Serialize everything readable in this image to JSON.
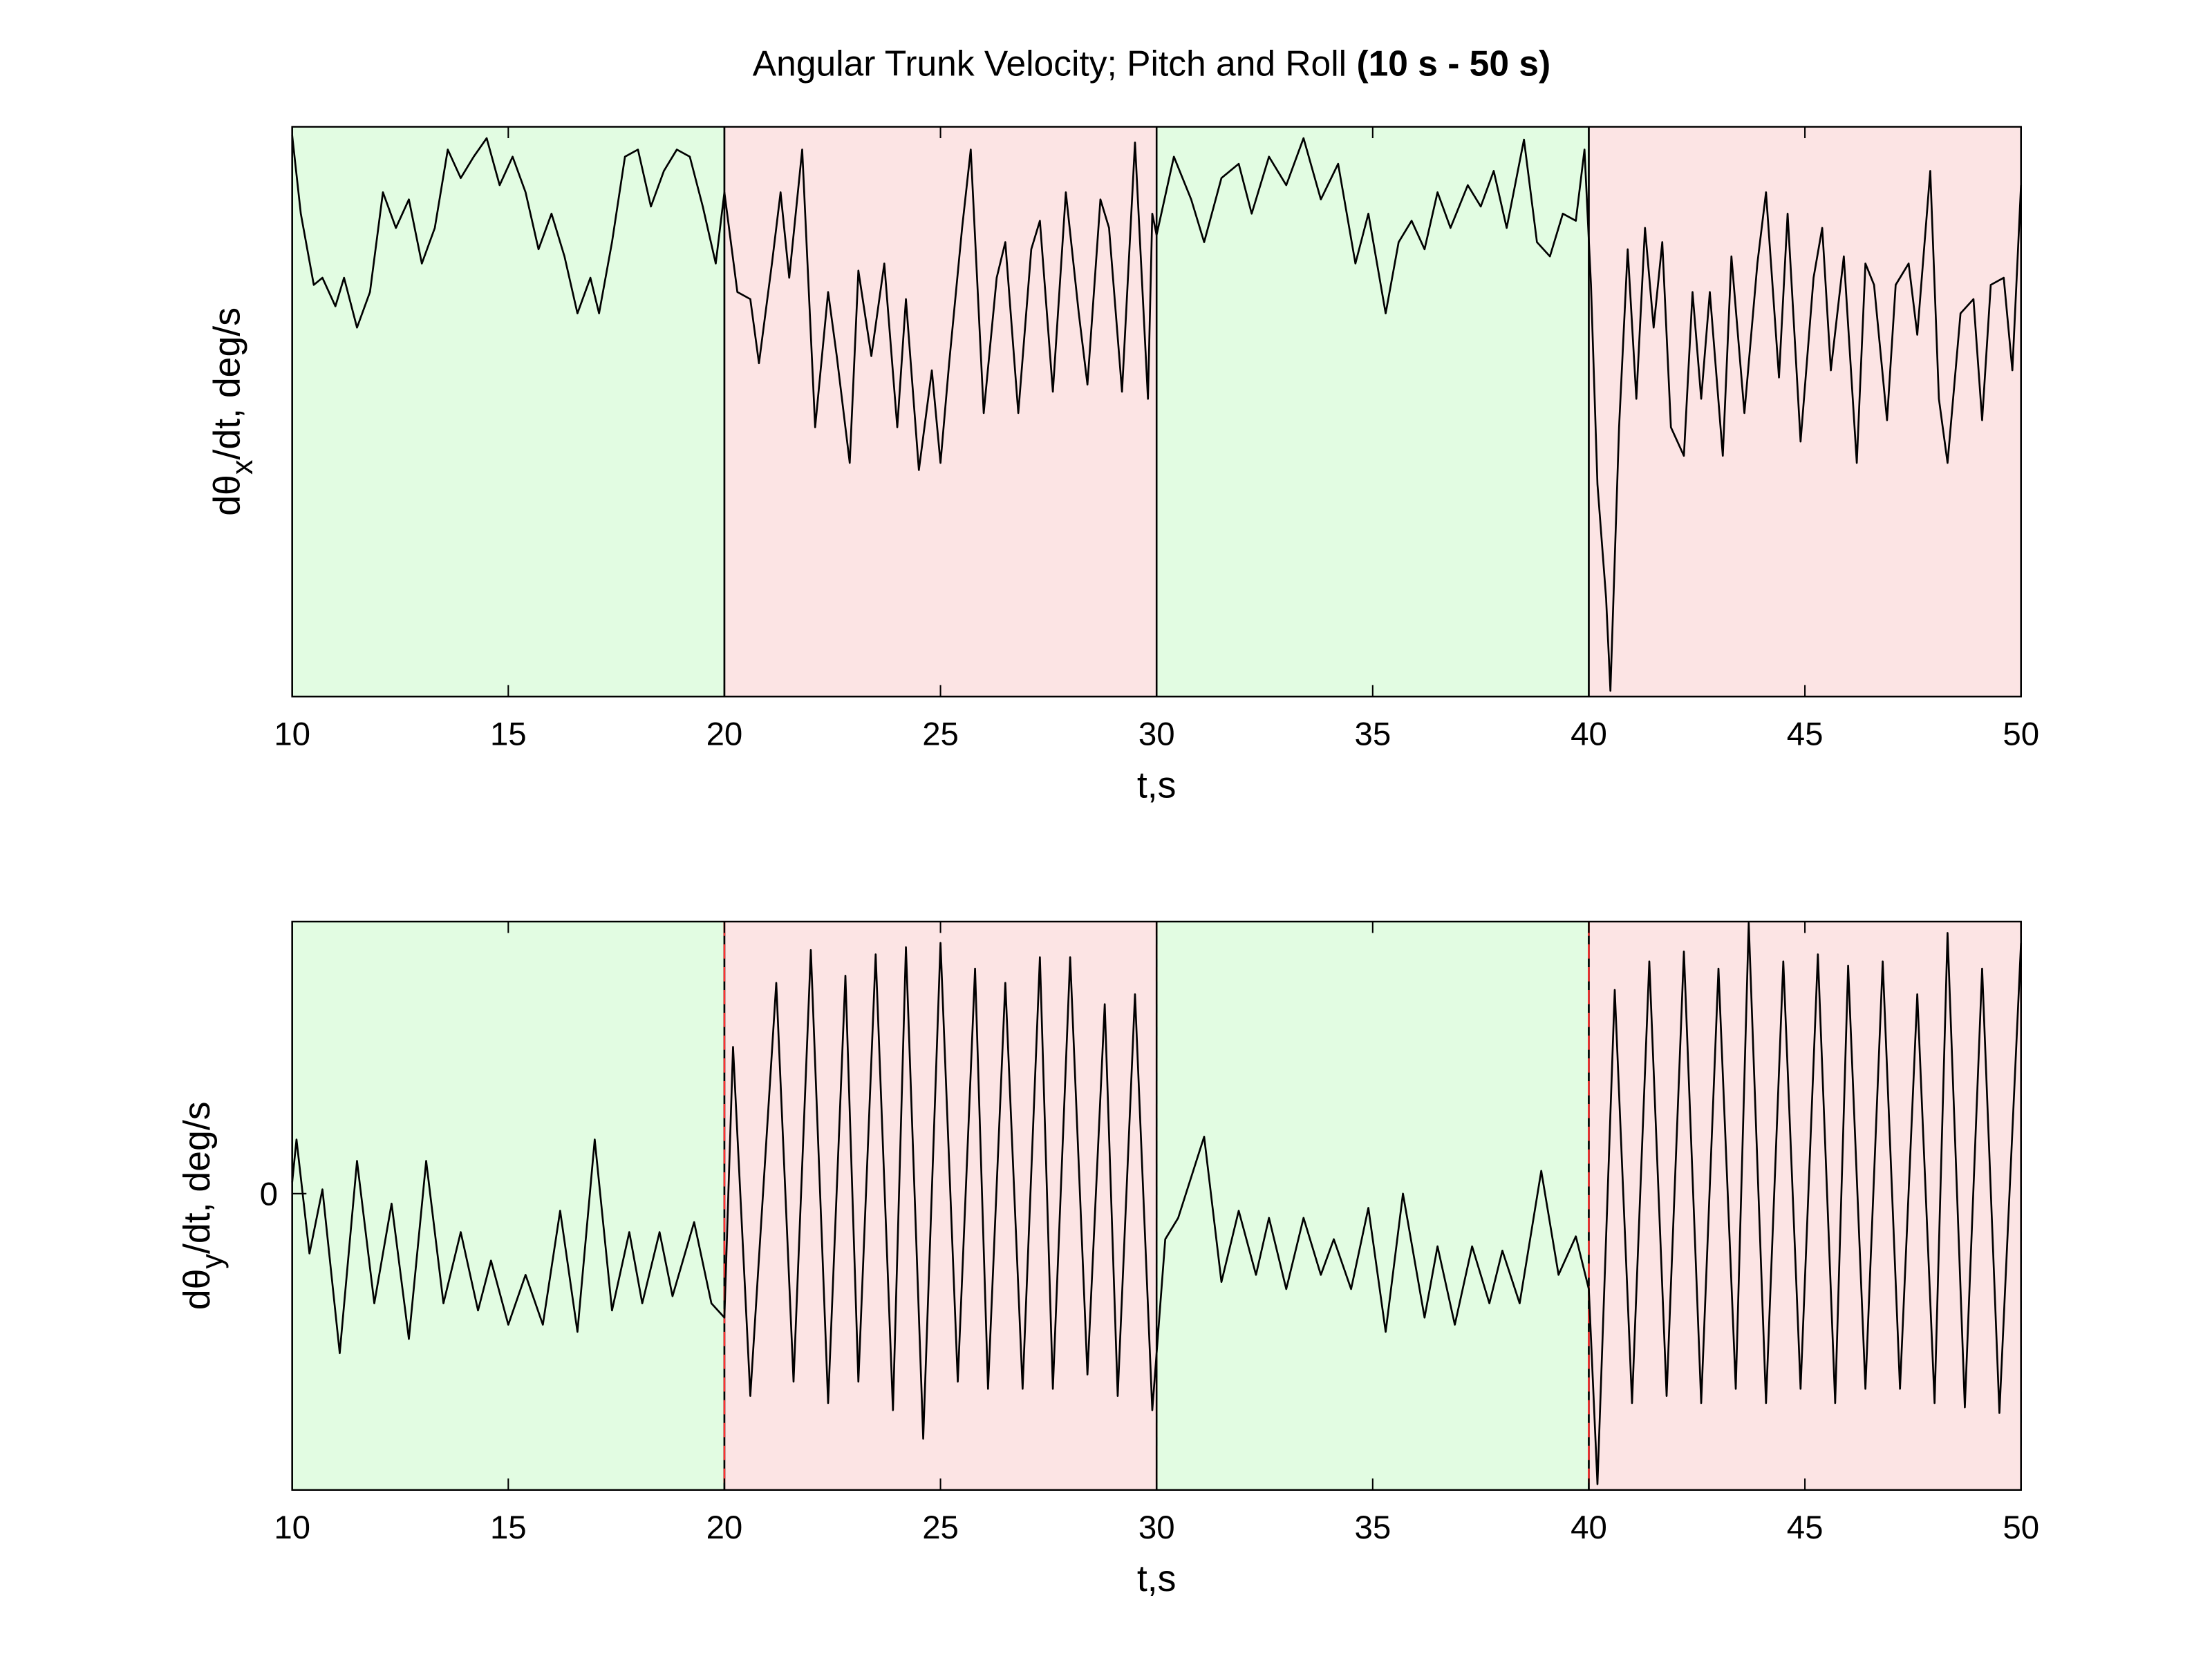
{
  "title": "Angular Trunk Velocity; Pitch and Roll",
  "title_note": "(10 s - 50 s)",
  "chart_data": [
    {
      "type": "line",
      "ylabel": "dθ",
      "ylabel_subscript": "x",
      "ylabel_suffix": "/dt, deg/s",
      "xlabel": "t,s",
      "xlim": [
        10,
        50
      ],
      "xticks": [
        10,
        15,
        20,
        25,
        30,
        35,
        40,
        45,
        50
      ],
      "ylim": [
        0,
        40
      ],
      "yticks": [],
      "regions": [
        {
          "start": 10,
          "end": 20,
          "color": "#e2fce2"
        },
        {
          "start": 20,
          "end": 30,
          "color": "#fce4e4"
        },
        {
          "start": 30,
          "end": 40,
          "color": "#e2fce2"
        },
        {
          "start": 40,
          "end": 50,
          "color": "#fce4e4"
        }
      ],
      "color": "#000000",
      "x": [
        10,
        10.2,
        10.5,
        10.7,
        11,
        11.2,
        11.5,
        11.8,
        12.1,
        12.4,
        12.7,
        13,
        13.3,
        13.6,
        13.9,
        14.2,
        14.5,
        14.8,
        15.1,
        15.4,
        15.7,
        16,
        16.3,
        16.6,
        16.9,
        17.1,
        17.4,
        17.7,
        18,
        18.3,
        18.6,
        18.9,
        19.2,
        19.5,
        19.8,
        20,
        20.3,
        20.6,
        20.8,
        21.1,
        21.3,
        21.5,
        21.8,
        22.1,
        22.4,
        22.6,
        22.9,
        23.1,
        23.4,
        23.7,
        24,
        24.2,
        24.5,
        24.8,
        25,
        25.2,
        25.5,
        25.7,
        26,
        26.3,
        26.5,
        26.8,
        27.1,
        27.3,
        27.6,
        27.9,
        28.2,
        28.4,
        28.7,
        28.9,
        29.2,
        29.5,
        29.8,
        29.9,
        30,
        30.4,
        30.8,
        31.1,
        31.5,
        31.9,
        32.2,
        32.6,
        33,
        33.4,
        33.8,
        34.2,
        34.6,
        34.9,
        35.3,
        35.6,
        35.9,
        36.2,
        36.5,
        36.8,
        37.2,
        37.5,
        37.8,
        38.1,
        38.5,
        38.8,
        39.1,
        39.4,
        39.7,
        39.9,
        40.05,
        40.2,
        40.4,
        40.5,
        40.7,
        40.9,
        41.1,
        41.3,
        41.5,
        41.7,
        41.9,
        42.2,
        42.4,
        42.6,
        42.8,
        43.1,
        43.3,
        43.6,
        43.9,
        44.1,
        44.4,
        44.6,
        44.9,
        45.2,
        45.4,
        45.6,
        45.9,
        46.2,
        46.4,
        46.6,
        46.9,
        47.1,
        47.4,
        47.6,
        47.9,
        48.1,
        48.3,
        48.6,
        48.9,
        49.1,
        49.3,
        49.6,
        49.8,
        50
      ],
      "values": [
        39.4,
        33.9,
        28.9,
        29.4,
        27.4,
        29.4,
        25.9,
        28.4,
        35.4,
        32.9,
        34.9,
        30.4,
        32.9,
        38.4,
        36.4,
        37.9,
        39.2,
        35.9,
        37.9,
        35.4,
        31.4,
        33.9,
        30.9,
        26.9,
        29.4,
        26.9,
        31.9,
        37.9,
        38.4,
        34.4,
        36.9,
        38.4,
        37.9,
        34.4,
        30.4,
        35.4,
        28.4,
        27.9,
        23.4,
        30.4,
        35.4,
        29.4,
        38.4,
        18.9,
        28.4,
        23.9,
        16.4,
        29.9,
        23.9,
        30.4,
        18.9,
        27.9,
        15.9,
        22.9,
        16.4,
        23.4,
        32.9,
        38.4,
        19.9,
        29.4,
        31.9,
        19.9,
        31.4,
        33.4,
        21.4,
        35.4,
        26.9,
        21.9,
        34.9,
        32.9,
        21.4,
        38.9,
        20.9,
        33.9,
        32.4,
        37.9,
        34.9,
        31.9,
        36.4,
        37.4,
        33.9,
        37.9,
        35.9,
        39.2,
        34.9,
        37.4,
        30.4,
        33.9,
        26.9,
        31.9,
        33.4,
        31.4,
        35.4,
        32.9,
        35.9,
        34.4,
        36.9,
        32.9,
        39.1,
        31.9,
        30.9,
        33.9,
        33.4,
        38.4,
        28.9,
        14.9,
        6.9,
        0.4,
        18.9,
        31.4,
        20.9,
        32.9,
        25.9,
        31.9,
        18.9,
        16.9,
        28.4,
        20.9,
        28.4,
        16.9,
        30.9,
        19.9,
        30.4,
        35.4,
        22.4,
        33.9,
        17.9,
        29.4,
        32.9,
        22.9,
        30.9,
        16.4,
        30.4,
        28.9,
        19.4,
        28.9,
        30.4,
        25.4,
        36.9,
        20.9,
        16.4,
        26.9,
        27.9,
        19.4,
        28.9,
        29.4,
        22.9,
        35.9
      ]
    },
    {
      "type": "line",
      "ylabel": "dθ",
      "ylabel_subscript": "y",
      "ylabel_suffix": "/dt, deg/s",
      "xlabel": "t,s",
      "xlim": [
        10,
        50
      ],
      "xticks": [
        10,
        15,
        20,
        25,
        30,
        35,
        40,
        45,
        50
      ],
      "ylim": [
        -20.8,
        19.1
      ],
      "yticks": [
        0
      ],
      "regions": [
        {
          "start": 10,
          "end": 20,
          "color": "#e2fce2"
        },
        {
          "start": 20,
          "end": 30,
          "color": "#fce4e4",
          "edge_color": "#ff3030"
        },
        {
          "start": 30,
          "end": 40,
          "color": "#e2fce2"
        },
        {
          "start": 40,
          "end": 50,
          "color": "#fce4e4",
          "edge_color": "#ff3030"
        }
      ],
      "color": "#000000",
      "x": [
        10,
        10.1,
        10.4,
        10.7,
        11.1,
        11.5,
        11.9,
        12.3,
        12.7,
        13.1,
        13.5,
        13.9,
        14.3,
        14.6,
        15,
        15.4,
        15.8,
        16.2,
        16.6,
        17,
        17.4,
        17.8,
        18.1,
        18.5,
        18.8,
        19.3,
        19.7,
        20,
        20.2,
        20.6,
        21.2,
        21.6,
        22,
        22.4,
        22.8,
        23.1,
        23.5,
        23.9,
        24.2,
        24.6,
        25,
        25.4,
        25.8,
        26.1,
        26.5,
        26.9,
        27.3,
        27.6,
        28,
        28.4,
        28.8,
        29.1,
        29.5,
        29.9,
        30.2,
        30.5,
        31.1,
        31.5,
        31.9,
        32.3,
        32.6,
        33,
        33.4,
        33.8,
        34.1,
        34.5,
        34.9,
        35.3,
        35.7,
        36.2,
        36.5,
        36.9,
        37.3,
        37.7,
        38,
        38.4,
        38.9,
        39.3,
        39.7,
        40,
        40.2,
        40.6,
        41,
        41.4,
        41.8,
        42.2,
        42.6,
        43,
        43.4,
        43.7,
        44.1,
        44.5,
        44.9,
        45.3,
        45.7,
        46,
        46.4,
        46.8,
        47.2,
        47.6,
        48,
        48.3,
        48.7,
        49.1,
        49.5,
        50
      ],
      "values": [
        0.8,
        3.8,
        -4.2,
        0.3,
        -11.2,
        2.3,
        -7.7,
        -0.7,
        -10.2,
        2.3,
        -7.7,
        -2.7,
        -8.2,
        -4.7,
        -9.2,
        -5.7,
        -9.2,
        -1.2,
        -9.7,
        3.8,
        -8.2,
        -2.7,
        -7.7,
        -2.7,
        -7.2,
        -2.0,
        -7.7,
        -8.7,
        10.3,
        -14.2,
        14.8,
        -13.2,
        17.1,
        -14.7,
        15.3,
        -13.2,
        16.8,
        -15.2,
        17.3,
        -17.2,
        17.6,
        -13.2,
        15.8,
        -13.7,
        14.8,
        -13.7,
        16.6,
        -13.7,
        16.6,
        -12.7,
        13.3,
        -14.2,
        14.0,
        -15.2,
        -3.2,
        -1.7,
        4.0,
        -6.2,
        -1.2,
        -5.7,
        -1.7,
        -6.7,
        -1.7,
        -5.7,
        -3.2,
        -6.7,
        -1.0,
        -9.7,
        0.0,
        -8.7,
        -3.7,
        -9.2,
        -3.7,
        -7.7,
        -4.0,
        -7.7,
        1.6,
        -5.7,
        -3.0,
        -6.7,
        -20.4,
        14.3,
        -14.7,
        16.3,
        -14.2,
        17.0,
        -14.7,
        15.8,
        -13.7,
        19.0,
        -14.7,
        16.3,
        -13.7,
        16.8,
        -14.7,
        16.0,
        -13.7,
        16.3,
        -13.7,
        14.0,
        -14.7,
        18.3,
        -15.0,
        15.8,
        -15.4,
        17.6
      ]
    }
  ]
}
